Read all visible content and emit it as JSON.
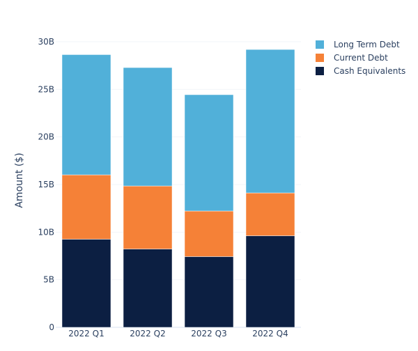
{
  "chart_data": {
    "type": "bar",
    "stacked": true,
    "title": "",
    "xlabel": "",
    "ylabel": "Amount ($)",
    "ylim": [
      0,
      30
    ],
    "y_unit_suffix": "B",
    "yticks": [
      0,
      5,
      10,
      15,
      20,
      25,
      30
    ],
    "ytick_labels": [
      "0",
      "5B",
      "10B",
      "15B",
      "20B",
      "25B",
      "30B"
    ],
    "grid": true,
    "legend_placement": "top-right",
    "categories": [
      "2022 Q1",
      "2022 Q2",
      "2022 Q3",
      "2022 Q4"
    ],
    "series": [
      {
        "name": "Cash Equivalents",
        "color": "#0c1f42",
        "values": [
          9.26,
          8.23,
          7.43,
          9.62
        ]
      },
      {
        "name": "Current Debt",
        "color": "#f58137",
        "values": [
          6.76,
          6.62,
          4.79,
          4.5
        ]
      },
      {
        "name": "Long Term Debt",
        "color": "#51b0d9",
        "values": [
          12.63,
          12.44,
          12.22,
          15.07
        ]
      }
    ],
    "legend_order": [
      "Long Term Debt",
      "Current Debt",
      "Cash Equivalents"
    ]
  }
}
